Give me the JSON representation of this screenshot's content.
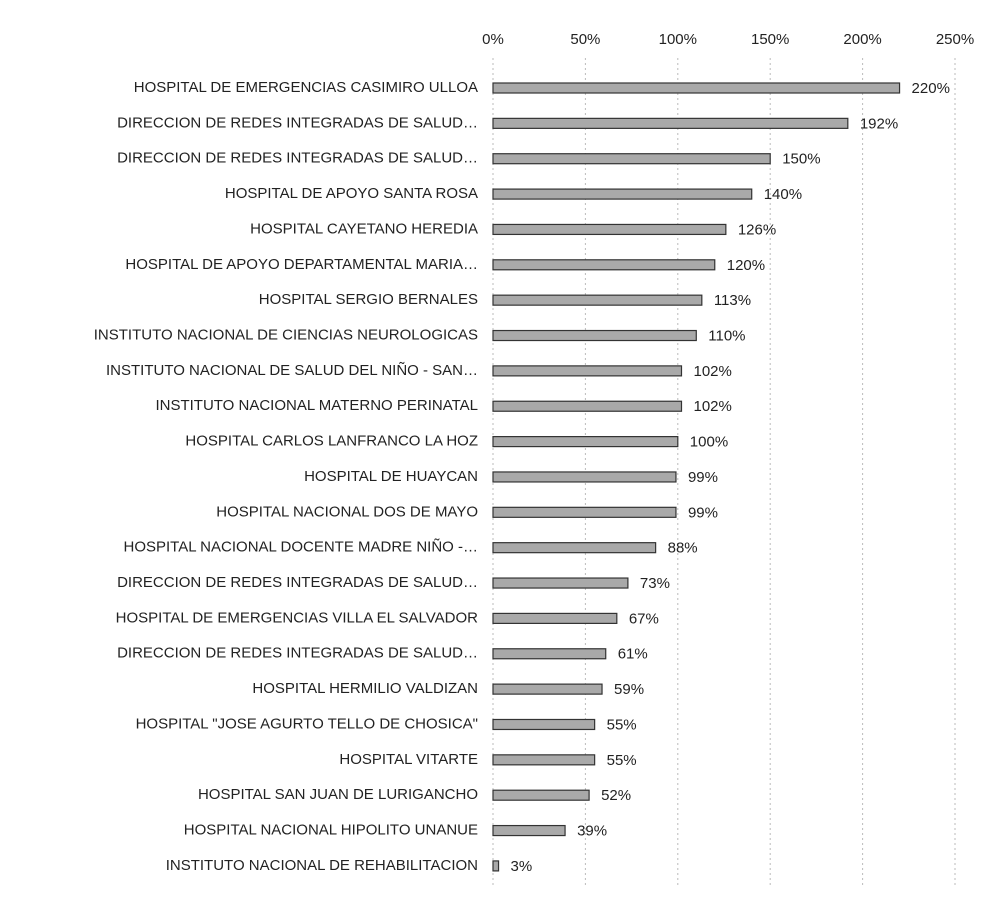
{
  "chart_data": {
    "type": "bar",
    "orientation": "horizontal",
    "categories": [
      "HOSPITAL DE EMERGENCIAS CASIMIRO ULLOA",
      "DIRECCION DE REDES INTEGRADAS DE SALUD…",
      "DIRECCION DE REDES INTEGRADAS DE SALUD…",
      "HOSPITAL DE APOYO SANTA ROSA",
      "HOSPITAL CAYETANO HEREDIA",
      "HOSPITAL DE APOYO DEPARTAMENTAL MARIA…",
      "HOSPITAL SERGIO BERNALES",
      "INSTITUTO NACIONAL DE CIENCIAS NEUROLOGICAS",
      "INSTITUTO NACIONAL DE SALUD DEL NIÑO - SAN…",
      "INSTITUTO NACIONAL MATERNO PERINATAL",
      "HOSPITAL CARLOS LANFRANCO LA HOZ",
      "HOSPITAL DE HUAYCAN",
      "HOSPITAL NACIONAL DOS DE MAYO",
      "HOSPITAL NACIONAL DOCENTE MADRE NIÑO -…",
      "DIRECCION DE REDES INTEGRADAS DE SALUD…",
      "HOSPITAL DE EMERGENCIAS VILLA EL SALVADOR",
      "DIRECCION DE REDES INTEGRADAS DE SALUD…",
      "HOSPITAL HERMILIO VALDIZAN",
      "HOSPITAL \"JOSE AGURTO TELLO DE CHOSICA\"",
      "HOSPITAL VITARTE",
      "HOSPITAL SAN JUAN DE LURIGANCHO",
      "HOSPITAL NACIONAL HIPOLITO UNANUE",
      "INSTITUTO NACIONAL DE REHABILITACION"
    ],
    "values": [
      220,
      192,
      150,
      140,
      126,
      120,
      113,
      110,
      102,
      102,
      100,
      99,
      99,
      88,
      73,
      67,
      61,
      59,
      55,
      55,
      52,
      39,
      3
    ],
    "value_labels": [
      "220%",
      "192%",
      "150%",
      "140%",
      "126%",
      "120%",
      "113%",
      "110%",
      "102%",
      "102%",
      "100%",
      "99%",
      "99%",
      "88%",
      "73%",
      "67%",
      "61%",
      "59%",
      "55%",
      "55%",
      "52%",
      "39%",
      "3%"
    ],
    "color": "#a9a9a9",
    "xlim": [
      0,
      250
    ],
    "xticks": [
      {
        "value": 0,
        "label": "0%"
      },
      {
        "value": 50,
        "label": "50%"
      },
      {
        "value": 100,
        "label": "100%"
      },
      {
        "value": 150,
        "label": "150%"
      },
      {
        "value": 200,
        "label": "200%"
      },
      {
        "value": 250,
        "label": "250%"
      }
    ],
    "grid": true
  }
}
